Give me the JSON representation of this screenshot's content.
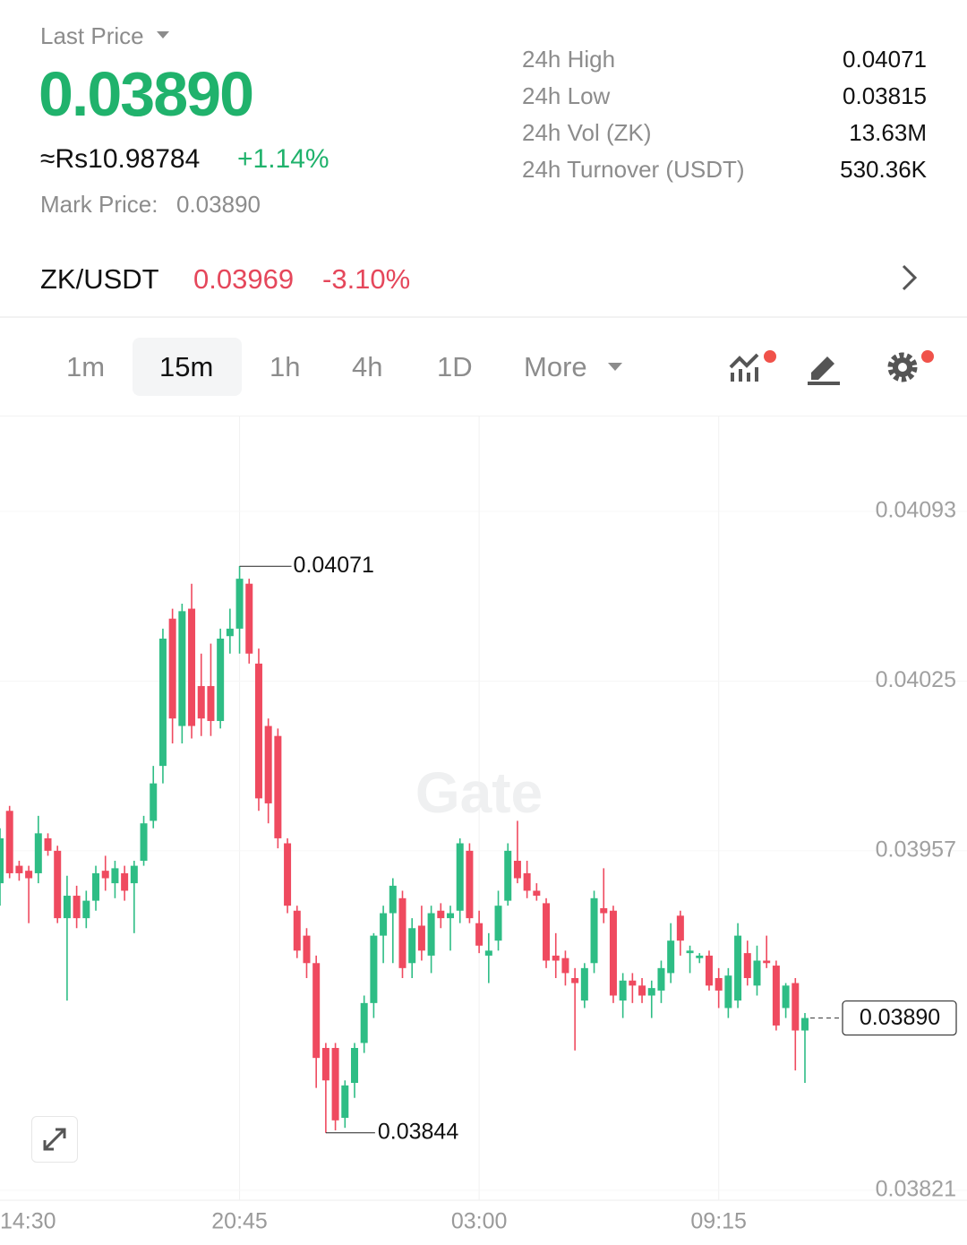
{
  "header": {
    "last_price_label": "Last Price",
    "last_price": "0.03890",
    "fiat_price": "≈Rs10.98784",
    "change": "+1.14%",
    "mark_price_label": "Mark Price:",
    "mark_price": "0.03890"
  },
  "stats": [
    {
      "label": "24h High",
      "value": "0.04071"
    },
    {
      "label": "24h Low",
      "value": "0.03815"
    },
    {
      "label": "24h Vol (ZK)",
      "value": "13.63M"
    },
    {
      "label": "24h Turnover (USDT)",
      "value": "530.36K"
    }
  ],
  "spot": {
    "pair": "ZK/USDT",
    "price": "0.03969",
    "change": "-3.10%"
  },
  "intervals": [
    "1m",
    "15m",
    "1h",
    "4h",
    "1D",
    "More"
  ],
  "chart": {
    "type": "candlestick",
    "watermark": "Gate",
    "up_color": "#2ebd85",
    "down_color": "#ef4a5f",
    "ylim": [
      0.03817,
      0.04131
    ],
    "yticks": [
      0.04093,
      0.04025,
      0.03957,
      0.03821
    ],
    "xticks": [
      {
        "value": 0,
        "label": "14:30"
      },
      {
        "value": 25,
        "label": "20:45"
      },
      {
        "value": 50,
        "label": "03:00"
      },
      {
        "value": 75,
        "label": "09:15"
      }
    ],
    "high_marker": 0.04071,
    "low_marker": 0.03844,
    "last_marker": {
      "value": 0.0389,
      "label": "0.03890"
    },
    "open": [
      0.03944,
      0.03973,
      0.03951,
      0.03949,
      0.03948,
      0.03962,
      0.03957,
      0.0393,
      0.03939,
      0.0393,
      0.03937,
      0.03949,
      0.03944,
      0.03948,
      0.03944,
      0.03953,
      0.03969,
      0.03991,
      0.0405,
      0.04007,
      0.04054,
      0.04023,
      0.04023,
      0.04009,
      0.04043,
      0.04046,
      0.04064,
      0.04032,
      0.04007,
      0.04003,
      0.0396,
      0.03933,
      0.03923,
      0.03912,
      0.03878,
      0.03878,
      0.0385,
      0.03864,
      0.0388,
      0.03896,
      0.03923,
      0.03932,
      0.03938,
      0.03912,
      0.03927,
      0.03915,
      0.03933,
      0.0393,
      0.03933,
      0.03957,
      0.03928,
      0.03915,
      0.03921,
      0.03937,
      0.03953,
      0.03948,
      0.03941,
      0.03936,
      0.03915,
      0.03914,
      0.03906,
      0.03897,
      0.03912,
      0.03934,
      0.03933,
      0.03897,
      0.03905,
      0.03903,
      0.03899,
      0.03901,
      0.03908,
      0.03931,
      0.03916,
      0.03914,
      0.03915,
      0.03906,
      0.03894,
      0.03897,
      0.03916,
      0.03903,
      0.03913,
      0.03911,
      0.03894,
      0.03904,
      0.03885
    ],
    "high": [
      0.03966,
      0.03975,
      0.03953,
      0.03951,
      0.03971,
      0.03964,
      0.03959,
      0.03947,
      0.03943,
      0.03941,
      0.03951,
      0.03955,
      0.03953,
      0.03951,
      0.03953,
      0.03971,
      0.03991,
      0.04046,
      0.04054,
      0.04056,
      0.04064,
      0.04036,
      0.0404,
      0.04046,
      0.04054,
      0.04071,
      0.04066,
      0.04038,
      0.0401,
      0.04006,
      0.03962,
      0.03935,
      0.03926,
      0.03915,
      0.0388,
      0.0388,
      0.03865,
      0.0388,
      0.03899,
      0.03924,
      0.03935,
      0.03946,
      0.03941,
      0.0393,
      0.03935,
      0.03935,
      0.03936,
      0.03935,
      0.03962,
      0.0396,
      0.03933,
      0.03924,
      0.03941,
      0.0396,
      0.03969,
      0.03953,
      0.03944,
      0.03938,
      0.03924,
      0.03917,
      0.0391,
      0.03912,
      0.03941,
      0.0395,
      0.03935,
      0.03908,
      0.03908,
      0.03906,
      0.03905,
      0.03913,
      0.03928,
      0.03933,
      0.03919,
      0.03916,
      0.03917,
      0.0391,
      0.0391,
      0.03928,
      0.03921,
      0.03919,
      0.03923,
      0.03913,
      0.03904,
      0.03906,
      0.03892
    ],
    "low": [
      0.03935,
      0.03946,
      0.03945,
      0.03928,
      0.03944,
      0.03955,
      0.03928,
      0.03897,
      0.03926,
      0.03926,
      0.03933,
      0.03941,
      0.03938,
      0.03937,
      0.03924,
      0.03951,
      0.03966,
      0.03984,
      0.04,
      0.04,
      0.04002,
      0.04003,
      0.04003,
      0.04006,
      0.04036,
      0.04036,
      0.04032,
      0.03973,
      0.03968,
      0.03958,
      0.03932,
      0.03914,
      0.03906,
      0.03862,
      0.03844,
      0.03845,
      0.03846,
      0.03858,
      0.03876,
      0.0389,
      0.03912,
      0.03912,
      0.03906,
      0.03906,
      0.03913,
      0.03908,
      0.03926,
      0.03917,
      0.03928,
      0.03928,
      0.03916,
      0.03904,
      0.03917,
      0.03935,
      0.03944,
      0.03938,
      0.03937,
      0.0391,
      0.03906,
      0.03903,
      0.03877,
      0.03894,
      0.03908,
      0.03928,
      0.03896,
      0.0389,
      0.03896,
      0.03896,
      0.0389,
      0.03896,
      0.03904,
      0.03915,
      0.03908,
      0.03912,
      0.03901,
      0.03894,
      0.0389,
      0.03894,
      0.03903,
      0.03899,
      0.0391,
      0.03885,
      0.0389,
      0.03869,
      0.03864
    ],
    "close": [
      0.03962,
      0.03948,
      0.03948,
      0.03946,
      0.03964,
      0.03957,
      0.0393,
      0.03939,
      0.0393,
      0.03937,
      0.03948,
      0.03946,
      0.0395,
      0.03941,
      0.03951,
      0.03968,
      0.03984,
      0.04042,
      0.0401,
      0.04053,
      0.04007,
      0.0401,
      0.04009,
      0.04042,
      0.04046,
      0.04066,
      0.04036,
      0.03978,
      0.03976,
      0.03962,
      0.03935,
      0.03917,
      0.03912,
      0.03874,
      0.03865,
      0.03849,
      0.03863,
      0.03878,
      0.03896,
      0.03923,
      0.03932,
      0.03943,
      0.0391,
      0.03926,
      0.03917,
      0.03932,
      0.0393,
      0.03932,
      0.0396,
      0.0393,
      0.03919,
      0.03917,
      0.03935,
      0.03957,
      0.03946,
      0.03941,
      0.03939,
      0.03913,
      0.03913,
      0.03908,
      0.03904,
      0.0391,
      0.03938,
      0.03932,
      0.03899,
      0.03905,
      0.03903,
      0.03899,
      0.03902,
      0.0391,
      0.03921,
      0.03921,
      0.03917,
      0.03915,
      0.03903,
      0.03901,
      0.03907,
      0.03923,
      0.03906,
      0.03913,
      0.03912,
      0.03887,
      0.03903,
      0.03885,
      0.0389
    ]
  }
}
